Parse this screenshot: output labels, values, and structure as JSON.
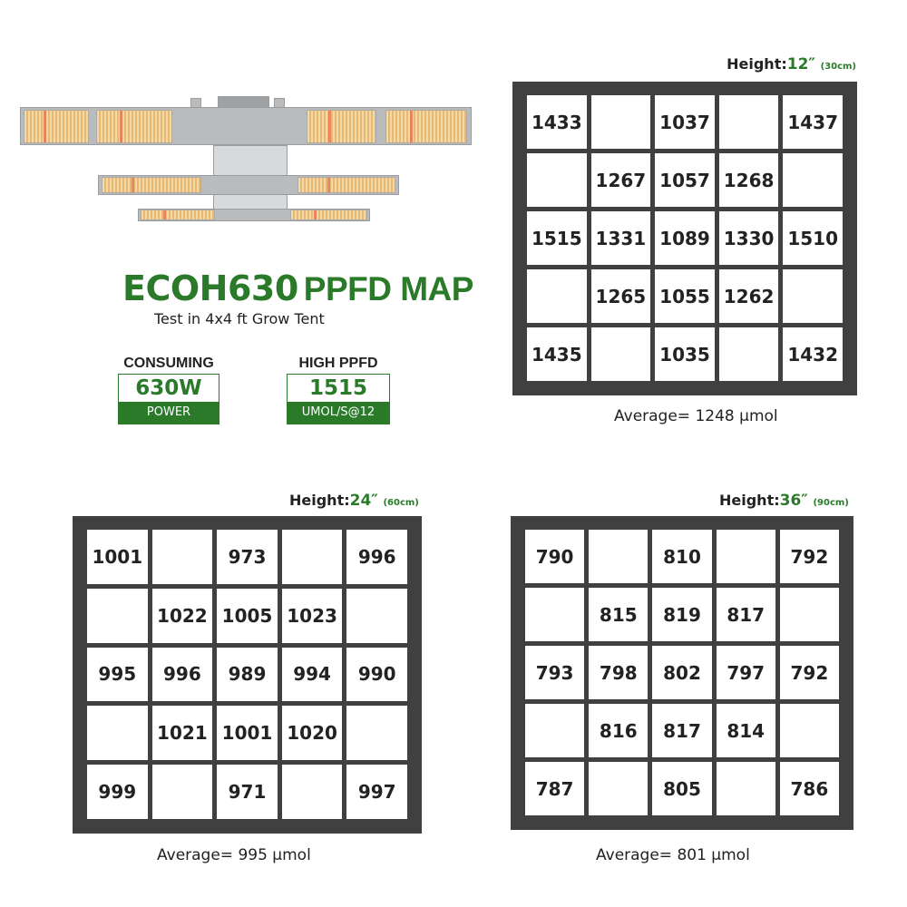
{
  "product": {
    "model": "ECOH630",
    "title_suffix": "PPFD MAP",
    "subtitle": "Test in 4x4 ft Grow Tent"
  },
  "stats": [
    {
      "label": "CONSUMING",
      "value": "630W",
      "unit": "POWER"
    },
    {
      "label": "HIGH PPFD",
      "value": "1515",
      "unit": "UMOL/S@12"
    }
  ],
  "colors": {
    "accent_green": "#2a7a2a",
    "grid_frame": "#404040"
  },
  "maps": [
    {
      "height_label": "Height:",
      "height_in": "12″",
      "height_cm": "(30cm)",
      "average": "Average= 1248 μmol",
      "rows": [
        [
          "1433",
          "",
          "1037",
          "",
          "1437"
        ],
        [
          "",
          "1267",
          "1057",
          "1268",
          ""
        ],
        [
          "1515",
          "1331",
          "1089",
          "1330",
          "1510"
        ],
        [
          "",
          "1265",
          "1055",
          "1262",
          ""
        ],
        [
          "1435",
          "",
          "1035",
          "",
          "1432"
        ]
      ]
    },
    {
      "height_label": "Height:",
      "height_in": "24″",
      "height_cm": "(60cm)",
      "average": "Average= 995 μmol",
      "rows": [
        [
          "1001",
          "",
          "973",
          "",
          "996"
        ],
        [
          "",
          "1022",
          "1005",
          "1023",
          ""
        ],
        [
          "995",
          "996",
          "989",
          "994",
          "990"
        ],
        [
          "",
          "1021",
          "1001",
          "1020",
          ""
        ],
        [
          "999",
          "",
          "971",
          "",
          "997"
        ]
      ]
    },
    {
      "height_label": "Height:",
      "height_in": "36″",
      "height_cm": "(90cm)",
      "average": "Average= 801 μmol",
      "rows": [
        [
          "790",
          "",
          "810",
          "",
          "792"
        ],
        [
          "",
          "815",
          "819",
          "817",
          ""
        ],
        [
          "793",
          "798",
          "802",
          "797",
          "792"
        ],
        [
          "",
          "816",
          "817",
          "814",
          ""
        ],
        [
          "787",
          "",
          "805",
          "",
          "786"
        ]
      ]
    }
  ]
}
